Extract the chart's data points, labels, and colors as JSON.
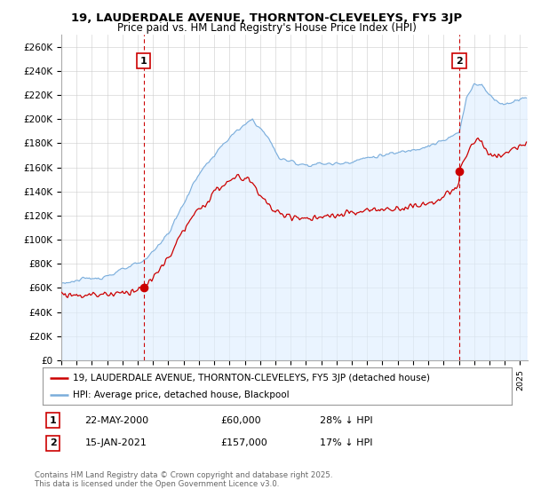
{
  "title_line1": "19, LAUDERDALE AVENUE, THORNTON-CLEVELEYS, FY5 3JP",
  "title_line2": "Price paid vs. HM Land Registry's House Price Index (HPI)",
  "yticks": [
    0,
    20000,
    40000,
    60000,
    80000,
    100000,
    120000,
    140000,
    160000,
    180000,
    200000,
    220000,
    240000,
    260000
  ],
  "ytick_labels": [
    "£0",
    "£20K",
    "£40K",
    "£60K",
    "£80K",
    "£100K",
    "£120K",
    "£140K",
    "£160K",
    "£180K",
    "£200K",
    "£220K",
    "£240K",
    "£260K"
  ],
  "ymin": 0,
  "ymax": 270000,
  "sale1_date_num": 2000.38,
  "sale1_price": 60000,
  "sale1_label": "1",
  "sale2_date_num": 2021.04,
  "sale2_price": 157000,
  "sale2_label": "2",
  "hpi_color": "#7aaddb",
  "hpi_fill_color": "#ddeeff",
  "price_color": "#cc0000",
  "vline_color": "#cc0000",
  "background_color": "#ffffff",
  "grid_color": "#cccccc",
  "legend_label_price": "19, LAUDERDALE AVENUE, THORNTON-CLEVELEYS, FY5 3JP (detached house)",
  "legend_label_hpi": "HPI: Average price, detached house, Blackpool",
  "footnote": "Contains HM Land Registry data © Crown copyright and database right 2025.\nThis data is licensed under the Open Government Licence v3.0.",
  "table_row1": [
    "1",
    "22-MAY-2000",
    "£60,000",
    "28% ↓ HPI"
  ],
  "table_row2": [
    "2",
    "15-JAN-2021",
    "£157,000",
    "17% ↓ HPI"
  ],
  "xmin": 1995,
  "xmax": 2025.5
}
